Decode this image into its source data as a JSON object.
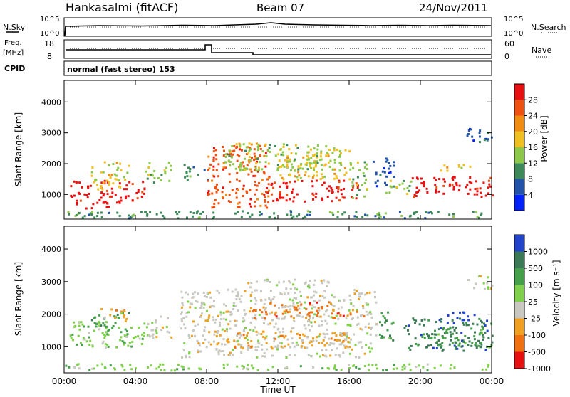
{
  "header": {
    "station": "Hankasalmi (fitACF)",
    "beam": "Beam 07",
    "date": "24/Nov/2011"
  },
  "summary_panels": {
    "nsky_label": "N.Sky",
    "nsearch_label": "N.Search",
    "log_tick_top": "10^5",
    "log_tick_bottom": "10^0",
    "freq_label_top": "Freq.",
    "freq_label_unit": "[MHz]",
    "freq_ticks": [
      "18",
      "8"
    ],
    "nave_label": "Nave",
    "nave_ticks": [
      "60",
      "0"
    ],
    "cpid_label": "CPID",
    "cpid_text": "normal (fast stereo) 153"
  },
  "chart_data": [
    {
      "type": "heatmap",
      "name": "power",
      "ylabel": "Slant Range [km]",
      "xlabel": "",
      "y_ticks": [
        "1000",
        "2000",
        "3000",
        "4000"
      ],
      "ylim": [
        200,
        4700
      ],
      "xlim": [
        0,
        24
      ],
      "colorbar_title": "Power [dB]",
      "colorbar_ticks": [
        "4",
        "8",
        "12",
        "16",
        "20",
        "24",
        "28"
      ],
      "colors": [
        "#0022ff",
        "#2255aa",
        "#3c8a5a",
        "#8cc84a",
        "#f0c020",
        "#f08c10",
        "#f05010",
        "#e81010"
      ]
    },
    {
      "type": "heatmap",
      "name": "velocity",
      "ylabel": "Slant Range [km]",
      "xlabel": "Time UT",
      "y_ticks": [
        "1000",
        "2000",
        "3000",
        "4000"
      ],
      "x_ticks": [
        "00:00",
        "04:00",
        "08:00",
        "12:00",
        "16:00",
        "20:00",
        "00:00"
      ],
      "ylim": [
        200,
        4700
      ],
      "xlim": [
        0,
        24
      ],
      "colorbar_title": "Velocity [m s⁻¹]",
      "colorbar_ticks": [
        "1000",
        "500",
        "100",
        "25",
        "-25",
        "-100",
        "-500",
        "-1000"
      ],
      "colors": [
        "#2244cc",
        "#3a7a56",
        "#45a04a",
        "#7fd04a",
        "#c8c8c0",
        "#f0a020",
        "#f07010",
        "#e81010"
      ]
    }
  ]
}
